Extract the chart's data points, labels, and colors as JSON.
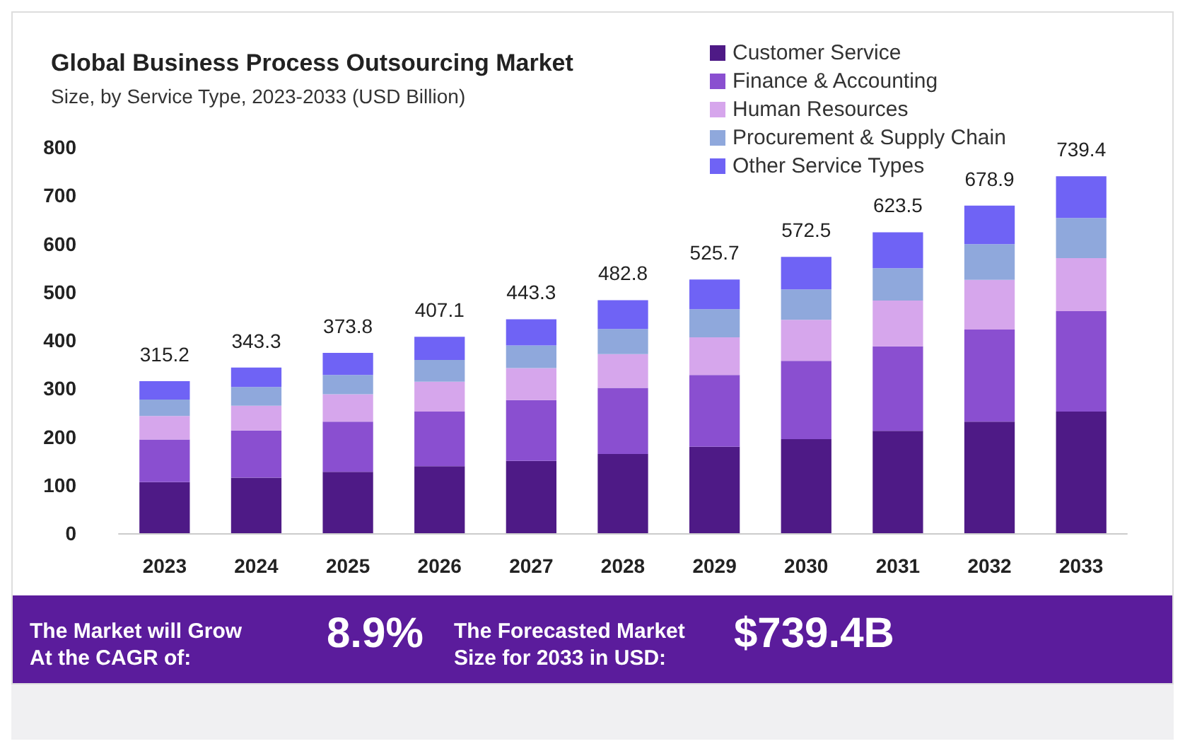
{
  "chart_data": {
    "type": "bar",
    "stacked": true,
    "title": "Global Business Process Outsourcing Market",
    "subtitle": "Size, by Service Type, 2023-2033 (USD Billion)",
    "categories": [
      "2023",
      "2024",
      "2025",
      "2026",
      "2027",
      "2028",
      "2029",
      "2030",
      "2031",
      "2032",
      "2033"
    ],
    "series": [
      {
        "name": "Customer Service",
        "color": "#4e1a86",
        "values": [
          106,
          115,
          127,
          139,
          150,
          164,
          179,
          195,
          212,
          231,
          252
        ]
      },
      {
        "name": "Finance & Accounting",
        "color": "#8a4fd0",
        "values": [
          88,
          98,
          104,
          113,
          126,
          137,
          149,
          162,
          175,
          191,
          208
        ]
      },
      {
        "name": "Human Resources",
        "color": "#d6a6ec",
        "values": [
          49,
          51,
          57,
          62,
          66,
          70,
          78,
          85,
          95,
          103,
          110
        ]
      },
      {
        "name": "Procurement & Supply Chain",
        "color": "#8fa8dc",
        "values": [
          34,
          39,
          40,
          45,
          47,
          52,
          58,
          63,
          67,
          74,
          83
        ]
      },
      {
        "name": "Other Service Types",
        "color": "#6f63f5",
        "values": [
          38.2,
          40.3,
          45.8,
          48.1,
          54.3,
          59.8,
          61.7,
          67.5,
          74.5,
          79.9,
          86.4
        ]
      }
    ],
    "totals": [
      "315.2",
      "343.3",
      "373.8",
      "407.1",
      "443.3",
      "482.8",
      "525.7",
      "572.5",
      "623.5",
      "678.9",
      "739.4"
    ],
    "ylim": [
      0,
      800
    ],
    "yticks": [
      0,
      100,
      200,
      300,
      400,
      500,
      600,
      700,
      800
    ],
    "grid": false,
    "legend": "top right",
    "annotations": [
      "The Market will Grow\nAt the CAGR of:",
      "8.9%",
      "The Forecasted Market\nSize for 2033 in USD:",
      "$739.4B"
    ]
  }
}
